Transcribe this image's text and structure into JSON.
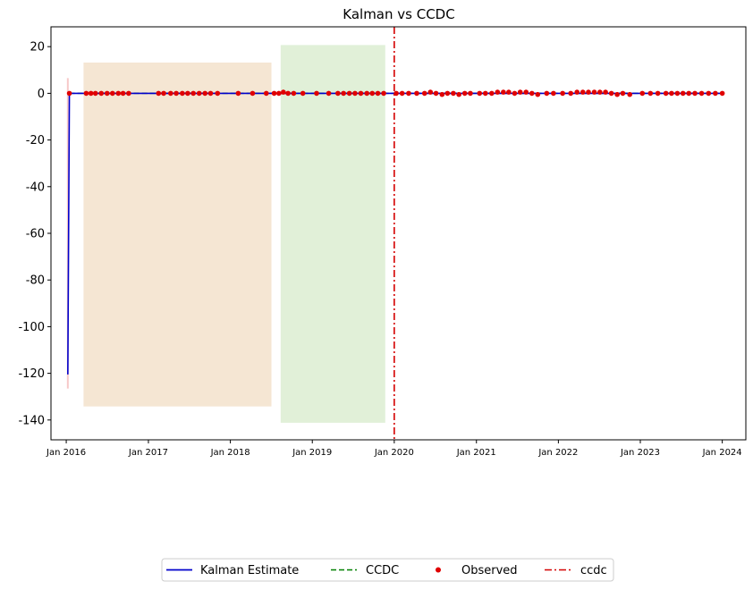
{
  "chart_data": {
    "type": "line",
    "title": "Kalman vs CCDC",
    "xlabel": "",
    "ylabel": "",
    "x_ticks": [
      "Jan 2016",
      "Jan 2017",
      "Jan 2018",
      "Jan 2019",
      "Jan 2020",
      "Jan 2021",
      "Jan 2022",
      "Jan 2023",
      "Jan 2024"
    ],
    "y_ticks": [
      20,
      0,
      -20,
      -40,
      -60,
      -80,
      -100,
      -120,
      -140
    ],
    "xlim": [
      "2015-10-25",
      "2024-04-15"
    ],
    "ylim": [
      -148.5,
      28.5
    ],
    "legend_placement": "bottom-center",
    "legend": [
      {
        "label": "Kalman Estimate",
        "style": "line",
        "color": "#0000cc"
      },
      {
        "label": "CCDC",
        "style": "dashed",
        "color": "#008000"
      },
      {
        "label": "Observed",
        "style": "dot",
        "color": "#e00000"
      },
      {
        "label": "ccdc",
        "style": "dashdot",
        "color": "#d40000"
      }
    ],
    "shaded_regions": [
      {
        "x_start": "2016-03-20",
        "x_end": "2018-07-01",
        "y_min": -134,
        "y_max": 13,
        "color": "#f5e6d3"
      },
      {
        "x_start": "2018-08-15",
        "x_end": "2019-11-20",
        "y_min": -141,
        "y_max": 20.5,
        "color": "#e1f0d8"
      }
    ],
    "uncertainty_band": {
      "x": "2016-01-08",
      "y_min": -126.5,
      "y_max": 6.5,
      "color": "#f7c8c8"
    },
    "break_line": {
      "x": "2020-01-01",
      "color": "#d40000"
    },
    "series": [
      {
        "name": "Kalman Estimate",
        "color": "#0000cc",
        "x": [
          "2016-01-08",
          "2016-01-15",
          "2024-01-01"
        ],
        "values": [
          -120.5,
          0,
          0
        ]
      },
      {
        "name": "CCDC",
        "color": "#008000",
        "x": [
          "2016-01-15",
          "2024-01-01"
        ],
        "values": [
          0,
          0
        ]
      },
      {
        "name": "Observed",
        "color": "#e00000",
        "x": [
          "2016-01-15",
          "2016-03-30",
          "2016-04-20",
          "2016-05-10",
          "2016-06-05",
          "2016-07-01",
          "2016-07-25",
          "2016-08-20",
          "2016-09-10",
          "2016-10-05",
          "2017-02-15",
          "2017-03-10",
          "2017-04-10",
          "2017-05-05",
          "2017-06-01",
          "2017-06-25",
          "2017-07-20",
          "2017-08-15",
          "2017-09-10",
          "2017-10-05",
          "2017-11-05",
          "2018-02-05",
          "2018-04-10",
          "2018-06-10",
          "2018-07-15",
          "2018-08-05",
          "2018-08-25",
          "2018-09-15",
          "2018-10-10",
          "2018-11-20",
          "2019-01-20",
          "2019-03-15",
          "2019-04-25",
          "2019-05-20",
          "2019-06-15",
          "2019-07-10",
          "2019-08-05",
          "2019-09-01",
          "2019-09-25",
          "2019-10-20",
          "2019-11-15",
          "2020-01-10",
          "2020-02-05",
          "2020-03-05",
          "2020-04-10",
          "2020-05-15",
          "2020-06-10",
          "2020-07-05",
          "2020-08-01",
          "2020-08-25",
          "2020-09-20",
          "2020-10-15",
          "2020-11-10",
          "2020-12-05",
          "2021-01-15",
          "2021-02-10",
          "2021-03-10",
          "2021-04-05",
          "2021-05-01",
          "2021-05-25",
          "2021-06-20",
          "2021-07-15",
          "2021-08-10",
          "2021-09-05",
          "2021-10-01",
          "2021-11-10",
          "2021-12-10",
          "2022-01-20",
          "2022-02-25",
          "2022-03-25",
          "2022-04-20",
          "2022-05-15",
          "2022-06-10",
          "2022-07-05",
          "2022-07-30",
          "2022-08-25",
          "2022-09-20",
          "2022-10-15",
          "2022-11-15",
          "2023-01-10",
          "2023-02-15",
          "2023-03-20",
          "2023-04-25",
          "2023-05-20",
          "2023-06-15",
          "2023-07-10",
          "2023-08-05",
          "2023-09-01",
          "2023-10-01",
          "2023-11-01",
          "2023-12-01",
          "2024-01-01"
        ],
        "values": [
          0,
          0,
          0,
          0,
          0,
          0,
          0,
          0,
          0,
          0,
          0,
          0,
          0,
          0,
          0,
          0,
          0,
          0,
          0,
          0,
          0,
          0,
          0,
          0,
          0,
          0,
          0.5,
          0,
          0,
          0,
          0,
          0,
          0,
          0,
          0,
          0,
          0,
          0,
          0,
          0,
          0,
          0,
          0,
          0,
          0,
          0,
          0.5,
          0,
          -0.5,
          0,
          0,
          -0.5,
          0,
          0,
          0,
          0,
          0,
          0.5,
          0.5,
          0.5,
          0,
          0.5,
          0.5,
          0,
          -0.5,
          0,
          0,
          0,
          0,
          0.5,
          0.5,
          0.5,
          0.5,
          0.5,
          0.5,
          0,
          -0.5,
          0,
          -0.5,
          0,
          0,
          0,
          0,
          0,
          0,
          0,
          0,
          0,
          0,
          0,
          0,
          0
        ]
      }
    ],
    "ccdc_label": "ccdc"
  }
}
